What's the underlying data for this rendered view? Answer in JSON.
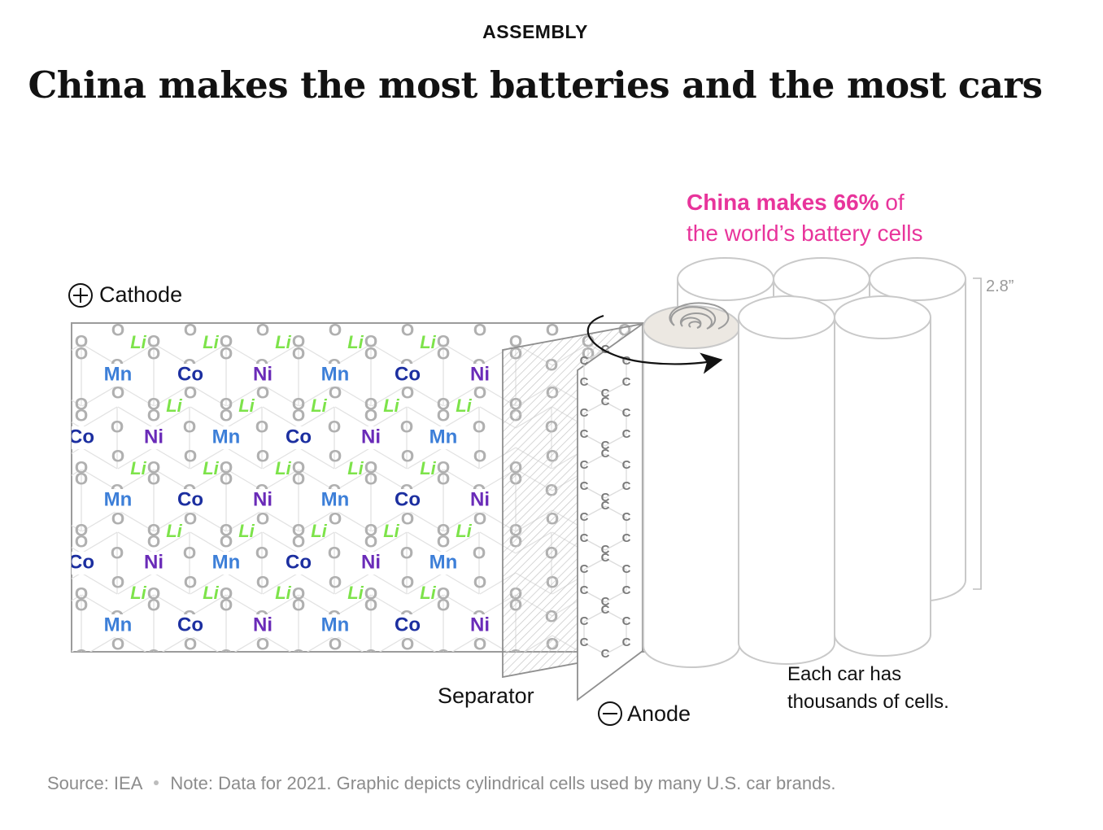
{
  "header": {
    "kicker": "ASSEMBLY",
    "title": "China makes the most batteries and the most cars"
  },
  "callout": {
    "highlight": "China makes 66%",
    "rest_line1": " of",
    "line2": "the world’s battery cells"
  },
  "labels": {
    "cathode": "Cathode",
    "separator": "Separator",
    "anode": "Anode",
    "dimension": "2.8”",
    "cells_note_line1": "Each car has",
    "cells_note_line2": "thousands of cells."
  },
  "cathode_lattice": {
    "row_a": [
      "Mn",
      "Co",
      "Ni",
      "Mn",
      "Co",
      "Ni"
    ],
    "row_b": [
      "Co",
      "Ni",
      "Mn",
      "Co",
      "Ni",
      "Mn"
    ],
    "lithium": "Li",
    "oxygen": "O"
  },
  "anode_lattice": {
    "carbon": "C"
  },
  "footer": {
    "source": "Source: IEA",
    "note": "Note: Data for 2021. Graphic depicts cylindrical cells used by many U.S. car brands."
  },
  "colors": {
    "Mn": "#3d7fd8",
    "Co": "#1c2fa0",
    "Ni": "#6a2bb8",
    "Li": "#7de34a",
    "O": "#b0b0b0",
    "highlight": "#e8349b"
  }
}
